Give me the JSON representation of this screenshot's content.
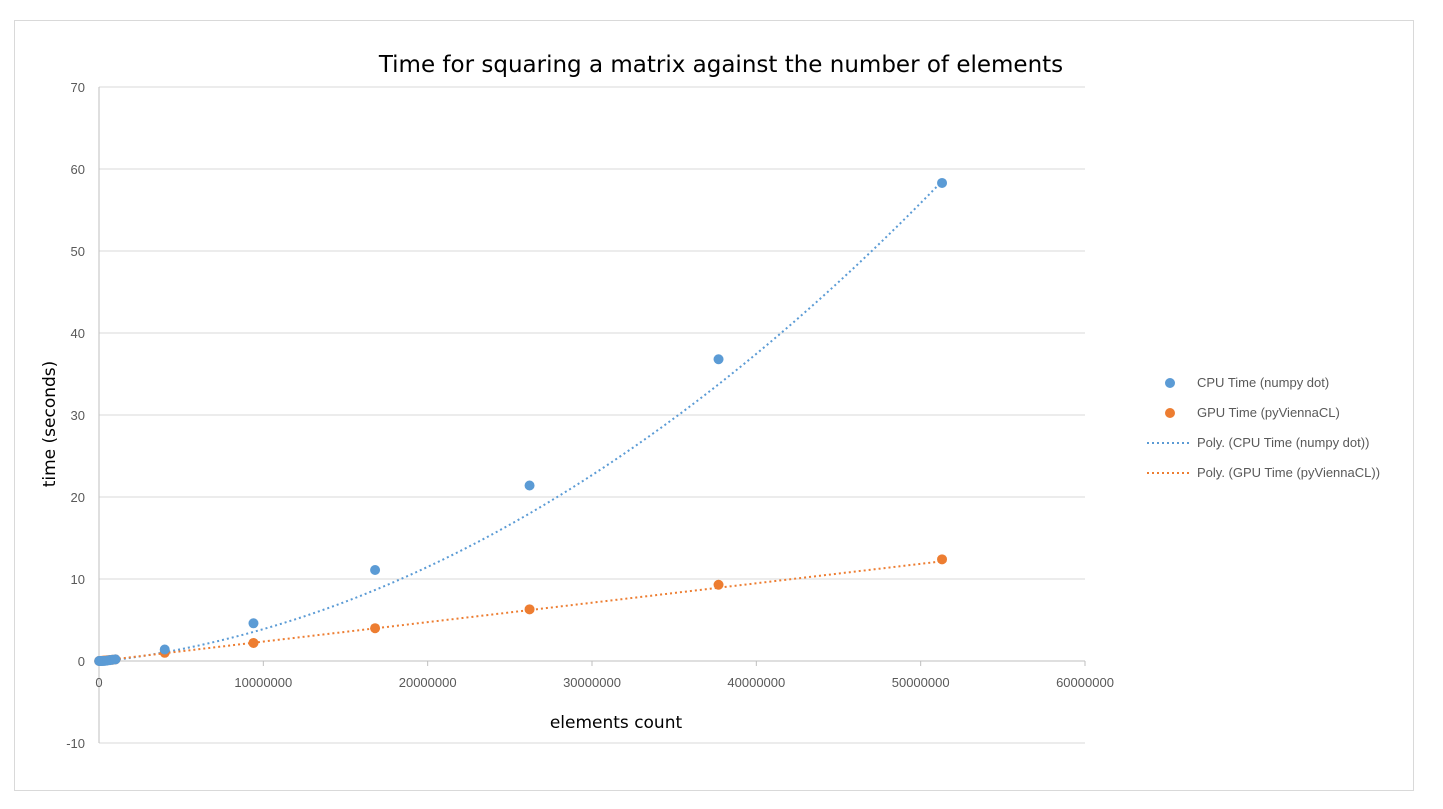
{
  "chart_data": {
    "type": "scatter",
    "title": "Time for squaring a matrix against the number of elements",
    "xlabel": "elements count",
    "ylabel": "time (seconds)",
    "xlim": [
      0,
      60000000
    ],
    "ylim": [
      -10,
      70
    ],
    "x_ticks": [
      "0",
      "10000000",
      "20000000",
      "30000000",
      "40000000",
      "50000000",
      "60000000"
    ],
    "y_ticks": [
      "-10",
      "0",
      "10",
      "20",
      "30",
      "40",
      "50",
      "60",
      "70"
    ],
    "grid": "horizontal",
    "legend_position": "right",
    "series": [
      {
        "name": "CPU Time (numpy dot)",
        "color": "#5B9BD5",
        "marker": "circle",
        "x": [
          10000,
          40000,
          90000,
          160000,
          250000,
          360000,
          490000,
          640000,
          810000,
          1000000,
          4000000,
          9400000,
          16800000,
          26200000,
          37700000,
          51300000
        ],
        "y": [
          0.0,
          0.0,
          0.0,
          0.0,
          0.0,
          0.02,
          0.05,
          0.1,
          0.15,
          0.2,
          1.4,
          4.6,
          11.1,
          21.4,
          36.8,
          58.3
        ]
      },
      {
        "name": "GPU Time (pyViennaCL)",
        "color": "#ED7D31",
        "marker": "circle",
        "x": [
          10000,
          40000,
          90000,
          160000,
          250000,
          360000,
          490000,
          640000,
          810000,
          1000000,
          4000000,
          9400000,
          16800000,
          26200000,
          37700000,
          51300000
        ],
        "y": [
          0.0,
          0.0,
          0.01,
          0.02,
          0.04,
          0.06,
          0.09,
          0.12,
          0.16,
          0.2,
          1.0,
          2.2,
          4.0,
          6.3,
          9.3,
          12.4
        ]
      }
    ],
    "trendlines": [
      {
        "name": "Poly. (CPU Time (numpy dot))",
        "color": "#5B9BD5",
        "style": "dotted",
        "type": "polynomial",
        "coefficients": [
          -0.1,
          2.19e-07,
          1.8e-14
        ]
      },
      {
        "name": "Poly. (GPU Time (pyViennaCL))",
        "color": "#ED7D31",
        "style": "dotted",
        "type": "polynomial",
        "coefficients": [
          0.0,
          2.37e-07,
          0.0
        ]
      }
    ]
  }
}
